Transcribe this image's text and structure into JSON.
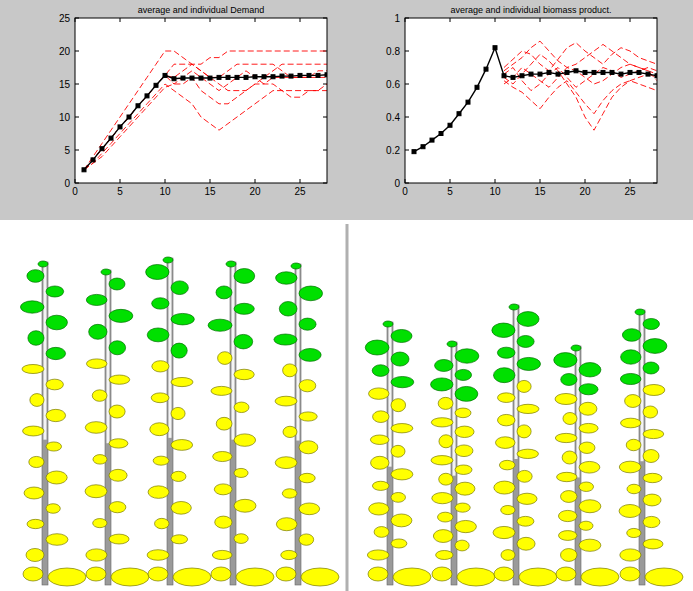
{
  "chart_data": [
    {
      "type": "line",
      "title": "average and individual Demand",
      "x": [
        1,
        2,
        3,
        4,
        5,
        6,
        7,
        8,
        9,
        10,
        11,
        12,
        13,
        14,
        15,
        16,
        17,
        18,
        19,
        20,
        21,
        22,
        23,
        24,
        25,
        26,
        27,
        28
      ],
      "xlim": [
        0,
        28
      ],
      "xticks": [
        0,
        5,
        10,
        15,
        20,
        25
      ],
      "ylim": [
        0,
        25
      ],
      "yticks": [
        0,
        5,
        10,
        15,
        20,
        25
      ],
      "grid": false,
      "series": [
        {
          "color": "#000000",
          "marker": "square",
          "line_style": "solid",
          "values": [
            2,
            3.5,
            5.2,
            6.8,
            8.5,
            10,
            11.7,
            13.2,
            14.8,
            16.3,
            15.8,
            15.9,
            15.9,
            15.9,
            15.9,
            16.0,
            16.0,
            16.0,
            16.0,
            16.1,
            16.1,
            16.1,
            16.2,
            16.2,
            16.3,
            16.3,
            16.3,
            16.4
          ]
        },
        {
          "color": "#ff0000",
          "marker": "none",
          "line_style": "dashed",
          "values": [
            2,
            3.5,
            5.2,
            6.8,
            8.5,
            10,
            11.7,
            13.2,
            14.8,
            16.3,
            16,
            17,
            18,
            18,
            19,
            19,
            20,
            20,
            20,
            20,
            20,
            20,
            20,
            20,
            20,
            20,
            20,
            20
          ]
        },
        {
          "color": "#ff0000",
          "marker": "none",
          "line_style": "dashed",
          "values": [
            2,
            3,
            4.5,
            6,
            7.5,
            9,
            10.5,
            12,
            13.5,
            15,
            14,
            13,
            12,
            10,
            9,
            8,
            9,
            10,
            11,
            12,
            13,
            14,
            14,
            14,
            14,
            14,
            14,
            14
          ]
        },
        {
          "color": "#ff0000",
          "marker": "none",
          "line_style": "dashed",
          "values": [
            2,
            3.5,
            5.2,
            6.8,
            8.5,
            10,
            11.7,
            13.2,
            14.8,
            16.3,
            18,
            18,
            18,
            17,
            16,
            16,
            17,
            18,
            18,
            18,
            18,
            18,
            17,
            16,
            16,
            16,
            17,
            17
          ]
        },
        {
          "color": "#ff0000",
          "marker": "none",
          "line_style": "dashed",
          "values": [
            2,
            4,
            6,
            8,
            10,
            12,
            14,
            16,
            18,
            20,
            20,
            19,
            18,
            17,
            16,
            15,
            14,
            14,
            14,
            15,
            16,
            17,
            18,
            18,
            18,
            18,
            18,
            18
          ]
        },
        {
          "color": "#ff0000",
          "marker": "none",
          "line_style": "dashed",
          "values": [
            2,
            3,
            4,
            5.5,
            7,
            8.5,
            10,
            11.5,
            13,
            14.5,
            15,
            15,
            16,
            14,
            13,
            12,
            12,
            13,
            14,
            15,
            15,
            15,
            14,
            13,
            13,
            14,
            14,
            15
          ]
        },
        {
          "color": "#ff0000",
          "marker": "none",
          "line_style": "dashed",
          "values": [
            2,
            3.5,
            5.2,
            6.8,
            8.5,
            10,
            11.7,
            13.2,
            14.8,
            16.3,
            15,
            16,
            17,
            16,
            15,
            14,
            15,
            16,
            17,
            16,
            15,
            16,
            16,
            16,
            16,
            16,
            16,
            16
          ]
        }
      ]
    },
    {
      "type": "line",
      "title": "average and individual biomass product.",
      "x": [
        1,
        2,
        3,
        4,
        5,
        6,
        7,
        8,
        9,
        10,
        11,
        12,
        13,
        14,
        15,
        16,
        17,
        18,
        19,
        20,
        21,
        22,
        23,
        24,
        25,
        26,
        27,
        28
      ],
      "xlim": [
        0,
        28
      ],
      "xticks": [
        0,
        5,
        10,
        15,
        20,
        25
      ],
      "ylim": [
        0,
        1
      ],
      "yticks": [
        0,
        0.2,
        0.4,
        0.6,
        0.8,
        1
      ],
      "grid": false,
      "series": [
        {
          "color": "#000000",
          "marker": "square",
          "line_style": "solid",
          "values": [
            0.19,
            0.22,
            0.26,
            0.3,
            0.35,
            0.42,
            0.49,
            0.58,
            0.69,
            0.82,
            0.65,
            0.64,
            0.65,
            0.66,
            0.66,
            0.67,
            0.66,
            0.67,
            0.68,
            0.67,
            0.67,
            0.67,
            0.67,
            0.66,
            0.67,
            0.67,
            0.66,
            0.65
          ]
        },
        {
          "color": "#ff0000",
          "marker": "none",
          "line_style": "dashed",
          "values": [
            null,
            null,
            null,
            null,
            null,
            null,
            null,
            null,
            null,
            null,
            0.7,
            0.75,
            0.8,
            0.78,
            0.72,
            0.68,
            0.75,
            0.82,
            0.85,
            0.8,
            0.76,
            0.72,
            0.78,
            0.82,
            0.8,
            0.76,
            0.74,
            0.72
          ]
        },
        {
          "color": "#ff0000",
          "marker": "none",
          "line_style": "dashed",
          "values": [
            null,
            null,
            null,
            null,
            null,
            null,
            null,
            null,
            null,
            null,
            0.62,
            0.58,
            0.55,
            0.5,
            0.45,
            0.52,
            0.58,
            0.62,
            0.55,
            0.48,
            0.42,
            0.5,
            0.56,
            0.6,
            0.62,
            0.6,
            0.58,
            0.56
          ]
        },
        {
          "color": "#ff0000",
          "marker": "none",
          "line_style": "dashed",
          "values": [
            null,
            null,
            null,
            null,
            null,
            null,
            null,
            null,
            null,
            null,
            0.66,
            0.7,
            0.62,
            0.56,
            0.6,
            0.66,
            0.7,
            0.64,
            0.58,
            0.62,
            0.66,
            0.7,
            0.68,
            0.64,
            0.66,
            0.68,
            0.7,
            0.68
          ]
        },
        {
          "color": "#ff0000",
          "marker": "none",
          "line_style": "dashed",
          "values": [
            null,
            null,
            null,
            null,
            null,
            null,
            null,
            null,
            null,
            null,
            0.64,
            0.6,
            0.66,
            0.72,
            0.78,
            0.74,
            0.68,
            0.6,
            0.52,
            0.4,
            0.32,
            0.42,
            0.52,
            0.58,
            0.62,
            0.64,
            0.66,
            0.64
          ]
        },
        {
          "color": "#ff0000",
          "marker": "none",
          "line_style": "dashed",
          "values": [
            null,
            null,
            null,
            null,
            null,
            null,
            null,
            null,
            null,
            null,
            0.68,
            0.72,
            0.76,
            0.82,
            0.86,
            0.8,
            0.74,
            0.7,
            0.72,
            0.76,
            0.8,
            0.84,
            0.8,
            0.76,
            0.72,
            0.7,
            0.68,
            0.66
          ]
        },
        {
          "color": "#ff0000",
          "marker": "none",
          "line_style": "dashed",
          "values": [
            null,
            null,
            null,
            null,
            null,
            null,
            null,
            null,
            null,
            null,
            0.6,
            0.64,
            0.7,
            0.66,
            0.62,
            0.58,
            0.64,
            0.7,
            0.68,
            0.64,
            0.6,
            0.62,
            0.66,
            0.7,
            0.72,
            0.7,
            0.68,
            0.62
          ]
        }
      ]
    }
  ]
}
